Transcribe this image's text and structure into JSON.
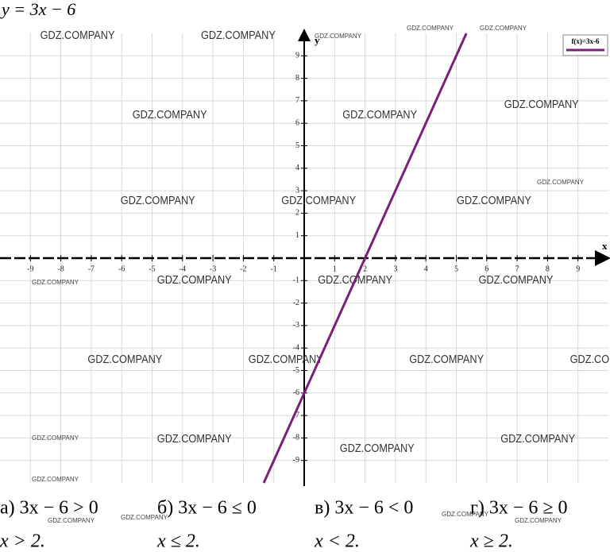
{
  "chart_data": {
    "type": "line",
    "title": "y = 3x − 6",
    "x": [
      -1.33,
      5.33
    ],
    "series": [
      {
        "name": "f(x)=3x-6",
        "color": "#7a1f7a",
        "values": [
          -10,
          10
        ]
      }
    ],
    "xlabel": "x",
    "ylabel": "y",
    "xlim": [
      -10,
      10
    ],
    "ylim": [
      -10,
      10
    ],
    "xticks": [
      -9,
      -8,
      -7,
      -6,
      -5,
      -4,
      -3,
      -2,
      -1,
      1,
      2,
      3,
      4,
      5,
      6,
      7,
      8,
      9
    ],
    "yticks": [
      -9,
      -8,
      -7,
      -6,
      -5,
      -4,
      -3,
      -2,
      -1,
      1,
      2,
      3,
      4,
      5,
      6,
      7,
      8,
      9
    ],
    "grid": true,
    "legend": "upper right"
  },
  "watermark": "GDZ.COMPANY",
  "exercises": [
    {
      "label": "а) 3x − 6 > 0",
      "answer": "x > 2."
    },
    {
      "label": "б) 3x − 6 ≤ 0",
      "answer": "x ≤ 2."
    },
    {
      "label": "в) 3x − 6 < 0",
      "answer": "x < 2."
    },
    {
      "label": "г) 3x − 6 ≥ 0",
      "answer": "x ≥ 2."
    }
  ]
}
